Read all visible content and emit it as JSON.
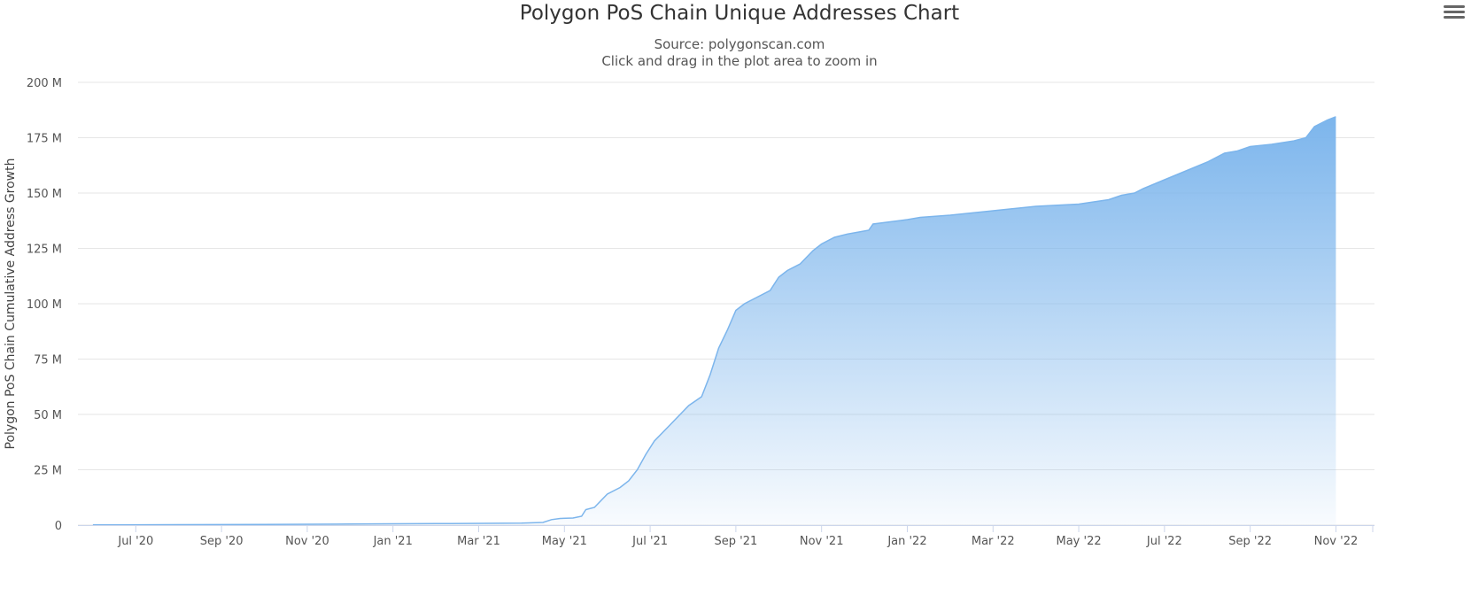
{
  "chart_data": {
    "type": "area",
    "title": "Polygon PoS Chain Unique Addresses Chart",
    "subtitle": "Source: polygonscan.com",
    "instruction": "Click and drag in the plot area to zoom in",
    "ylabel": "Polygon PoS Chain Cumulative Address Growth",
    "ylim": [
      0,
      200000000
    ],
    "yticks": [
      {
        "value": 0,
        "label": "0"
      },
      {
        "value": 25000000,
        "label": "25 M"
      },
      {
        "value": 50000000,
        "label": "50 M"
      },
      {
        "value": 75000000,
        "label": "75 M"
      },
      {
        "value": 100000000,
        "label": "100 M"
      },
      {
        "value": 125000000,
        "label": "125 M"
      },
      {
        "value": 150000000,
        "label": "150 M"
      },
      {
        "value": 175000000,
        "label": "175 M"
      },
      {
        "value": 200000000,
        "label": "200 M"
      }
    ],
    "xrange_months": [
      -0.35,
      29.9
    ],
    "xticks": [
      {
        "m": 1,
        "label": "Jul '20"
      },
      {
        "m": 3,
        "label": "Sep '20"
      },
      {
        "m": 5,
        "label": "Nov '20"
      },
      {
        "m": 7,
        "label": "Jan '21"
      },
      {
        "m": 9,
        "label": "Mar '21"
      },
      {
        "m": 11,
        "label": "May '21"
      },
      {
        "m": 13,
        "label": "Jul '21"
      },
      {
        "m": 15,
        "label": "Sep '21"
      },
      {
        "m": 17,
        "label": "Nov '21"
      },
      {
        "m": 19,
        "label": "Jan '22"
      },
      {
        "m": 21,
        "label": "Mar '22"
      },
      {
        "m": 23,
        "label": "May '22"
      },
      {
        "m": 25,
        "label": "Jul '22"
      },
      {
        "m": 27,
        "label": "Sep '22"
      },
      {
        "m": 29,
        "label": "Nov '22"
      }
    ],
    "series": [
      {
        "name": "Polygon PoS Chain Cumulative Address Growth",
        "color": "#7cb5ec",
        "points": [
          [
            0,
            0.1
          ],
          [
            2,
            0.2
          ],
          [
            4,
            0.3
          ],
          [
            6,
            0.5
          ],
          [
            8,
            0.7
          ],
          [
            10,
            0.9
          ],
          [
            10.5,
            1.2
          ],
          [
            10.7,
            2.5
          ],
          [
            10.9,
            3
          ],
          [
            11.2,
            3.2
          ],
          [
            11.4,
            4
          ],
          [
            11.5,
            7
          ],
          [
            11.7,
            8
          ],
          [
            12.0,
            14
          ],
          [
            12.3,
            17
          ],
          [
            12.5,
            20
          ],
          [
            12.7,
            25
          ],
          [
            12.9,
            32
          ],
          [
            13.1,
            38
          ],
          [
            13.4,
            44
          ],
          [
            13.7,
            50
          ],
          [
            13.9,
            54
          ],
          [
            14.2,
            58
          ],
          [
            14.4,
            68
          ],
          [
            14.6,
            80
          ],
          [
            14.8,
            88
          ],
          [
            15.0,
            97
          ],
          [
            15.2,
            100
          ],
          [
            15.5,
            103
          ],
          [
            15.8,
            106
          ],
          [
            16.0,
            112
          ],
          [
            16.2,
            115
          ],
          [
            16.5,
            118
          ],
          [
            16.8,
            124
          ],
          [
            17.0,
            127
          ],
          [
            17.3,
            130
          ],
          [
            17.6,
            131.5
          ],
          [
            17.9,
            132.5
          ],
          [
            18.1,
            133.2
          ],
          [
            18.2,
            136
          ],
          [
            18.6,
            137
          ],
          [
            19.0,
            138
          ],
          [
            19.3,
            139
          ],
          [
            20.0,
            140
          ],
          [
            21.0,
            142
          ],
          [
            22.0,
            144
          ],
          [
            23.0,
            145
          ],
          [
            23.7,
            147
          ],
          [
            24.0,
            149
          ],
          [
            24.3,
            150
          ],
          [
            24.5,
            152
          ],
          [
            25.0,
            156
          ],
          [
            25.5,
            160
          ],
          [
            26.0,
            164
          ],
          [
            26.4,
            168
          ],
          [
            26.7,
            169
          ],
          [
            27.0,
            171
          ],
          [
            27.5,
            172
          ],
          [
            28.0,
            173.5
          ],
          [
            28.3,
            175
          ],
          [
            28.5,
            180
          ],
          [
            28.8,
            183
          ],
          [
            29.0,
            184.5
          ]
        ]
      }
    ]
  },
  "menu": {
    "icon": "hamburger-menu-icon"
  }
}
